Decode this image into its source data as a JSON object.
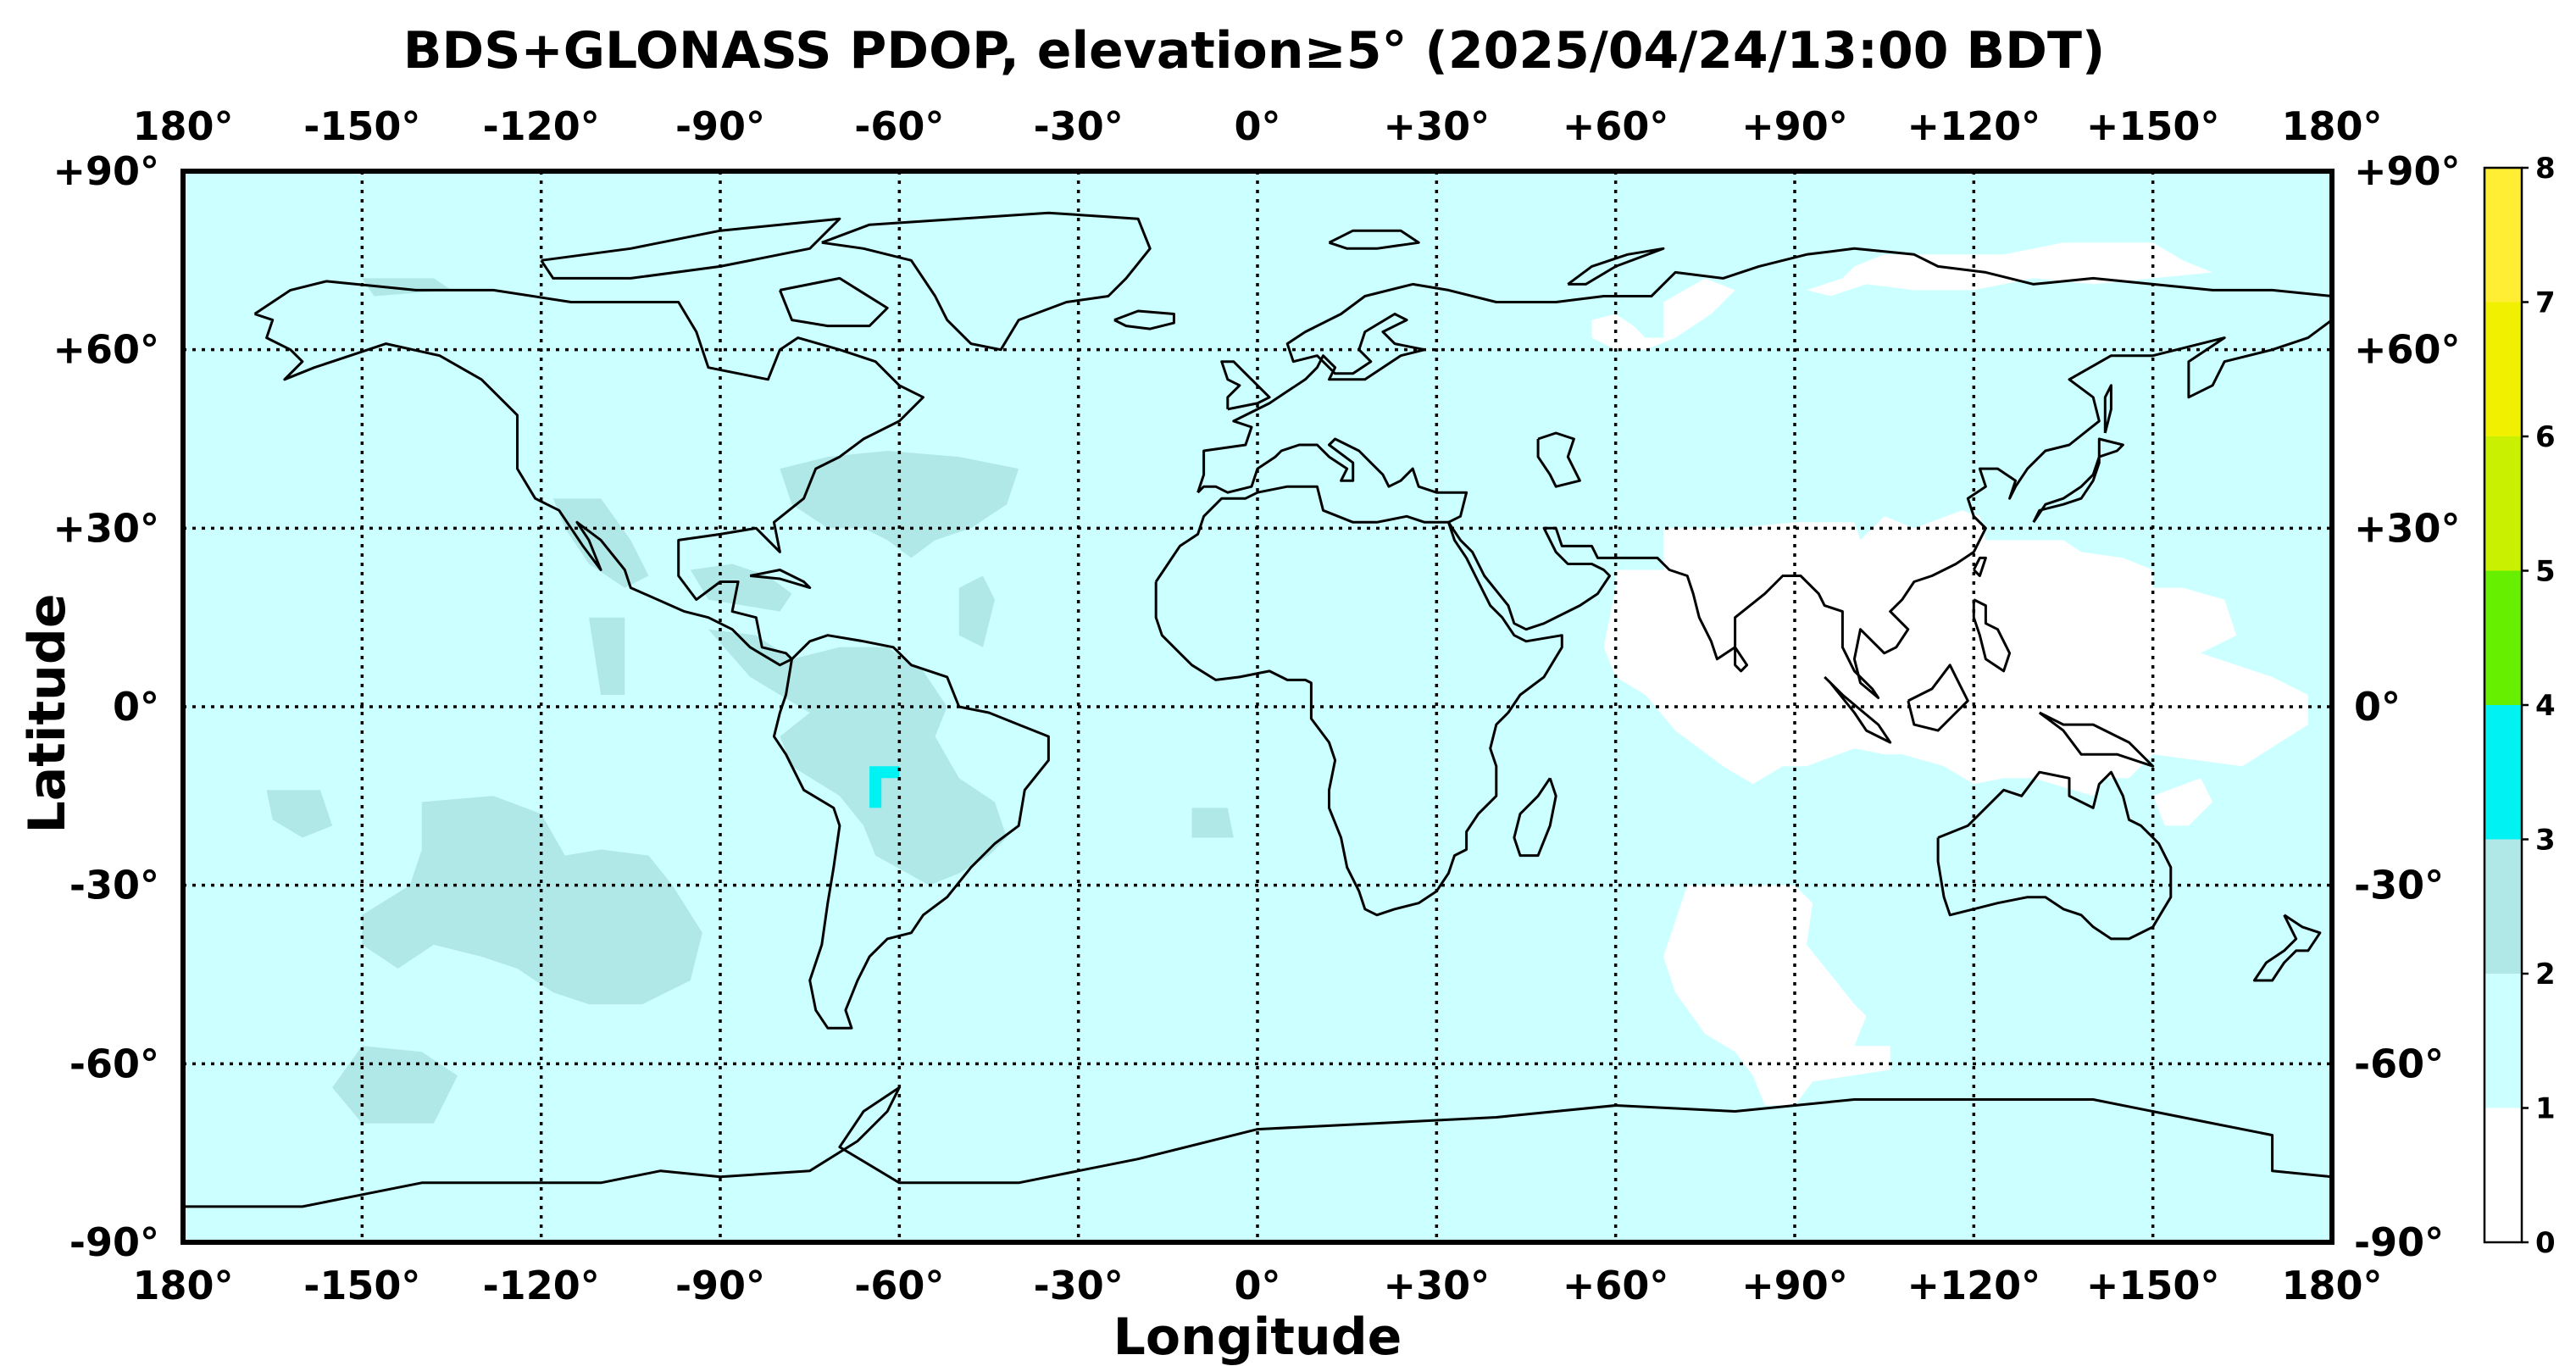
{
  "title": "BDS+GLONASS PDOP, elevation≥5° (2025/04/24/13:00 BDT)",
  "map": {
    "xlabel": "Longitude",
    "ylabel": "Latitude",
    "x_ticks": [
      {
        "value": -180,
        "label": "180°"
      },
      {
        "value": -150,
        "label": "-150°"
      },
      {
        "value": -120,
        "label": "-120°"
      },
      {
        "value": -90,
        "label": "-90°"
      },
      {
        "value": -60,
        "label": "-60°"
      },
      {
        "value": -30,
        "label": "-30°"
      },
      {
        "value": 0,
        "label": "0°"
      },
      {
        "value": 30,
        "label": "+30°"
      },
      {
        "value": 60,
        "label": "+60°"
      },
      {
        "value": 90,
        "label": "+90°"
      },
      {
        "value": 120,
        "label": "+120°"
      },
      {
        "value": 150,
        "label": "+150°"
      },
      {
        "value": 180,
        "label": "180°"
      }
    ],
    "y_ticks": [
      {
        "value": 90,
        "label": "+90°"
      },
      {
        "value": 60,
        "label": "+60°"
      },
      {
        "value": 30,
        "label": "+30°"
      },
      {
        "value": 0,
        "label": "0°"
      },
      {
        "value": -30,
        "label": "-30°"
      },
      {
        "value": -60,
        "label": "-60°"
      },
      {
        "value": -90,
        "label": "-90°"
      }
    ],
    "xlim": [
      -180,
      180
    ],
    "ylim": [
      -90,
      90
    ],
    "grid": true,
    "background_pdop_class": "1-2"
  },
  "colorbar": {
    "ticks": [
      "0",
      "1",
      "2",
      "3",
      "4",
      "5",
      "6",
      "7",
      "8"
    ],
    "bins": [
      {
        "range": [
          0,
          1
        ],
        "color": "#ffffff"
      },
      {
        "range": [
          1,
          2
        ],
        "color": "#ccffff"
      },
      {
        "range": [
          2,
          3
        ],
        "color": "#b0e8e8"
      },
      {
        "range": [
          3,
          4
        ],
        "color": "#00f2f2"
      },
      {
        "range": [
          4,
          5
        ],
        "color": "#66f000"
      },
      {
        "range": [
          5,
          6
        ],
        "color": "#c8f000"
      },
      {
        "range": [
          6,
          7
        ],
        "color": "#f0f000"
      },
      {
        "range": [
          7,
          8
        ],
        "color": "#ffee33"
      }
    ]
  },
  "chart_data": {
    "type": "heatmap",
    "title": "BDS+GLONASS PDOP, elevation≥5° (2025/04/24/13:00 BDT)",
    "xlabel": "Longitude",
    "ylabel": "Latitude",
    "xlim": [
      -180,
      180
    ],
    "ylim": [
      -90,
      90
    ],
    "colorbar_range": [
      0,
      8
    ],
    "background_value_range": [
      1,
      2
    ],
    "regions": [
      {
        "name": "east-asia-low-pdop",
        "pdop_range": [
          0,
          1
        ],
        "polygon": [
          [
            60,
            23
          ],
          [
            68,
            23
          ],
          [
            68,
            30
          ],
          [
            80,
            30
          ],
          [
            90,
            31
          ],
          [
            100,
            31
          ],
          [
            101,
            28
          ],
          [
            105,
            32
          ],
          [
            110,
            30
          ],
          [
            118,
            33
          ],
          [
            121,
            32
          ],
          [
            122,
            28
          ],
          [
            135,
            28
          ],
          [
            138,
            26
          ],
          [
            145,
            25
          ],
          [
            150,
            23
          ],
          [
            150,
            20
          ],
          [
            155,
            20
          ],
          [
            162,
            18
          ],
          [
            164,
            12
          ],
          [
            158,
            9
          ],
          [
            170,
            5
          ],
          [
            176,
            2
          ],
          [
            176,
            -3
          ],
          [
            165,
            -10
          ],
          [
            150,
            -8
          ],
          [
            146,
            -12
          ],
          [
            142,
            -12
          ],
          [
            140,
            -15
          ],
          [
            130,
            -12
          ],
          [
            125,
            -12
          ],
          [
            120,
            -13
          ],
          [
            115,
            -10
          ],
          [
            108,
            -8
          ],
          [
            105,
            -8
          ],
          [
            100,
            -7
          ],
          [
            92,
            -10
          ],
          [
            88,
            -10
          ],
          [
            83,
            -13
          ],
          [
            78,
            -10
          ],
          [
            70,
            -4
          ],
          [
            65,
            2
          ],
          [
            60,
            5
          ],
          [
            58,
            10
          ],
          [
            60,
            20
          ]
        ]
      },
      {
        "name": "siberia-low-pdop",
        "pdop_range": [
          0,
          1
        ],
        "polygon": [
          [
            92,
            70
          ],
          [
            98,
            72
          ],
          [
            100,
            74
          ],
          [
            105,
            76
          ],
          [
            125,
            76
          ],
          [
            135,
            78
          ],
          [
            150,
            78
          ],
          [
            155,
            75
          ],
          [
            160,
            73
          ],
          [
            140,
            71
          ],
          [
            130,
            72
          ],
          [
            120,
            70
          ],
          [
            110,
            70
          ],
          [
            102,
            71
          ],
          [
            96,
            69
          ]
        ]
      },
      {
        "name": "central-asia-low-pdop",
        "pdop_range": [
          0,
          1
        ],
        "polygon": [
          [
            56,
            65
          ],
          [
            60,
            66
          ],
          [
            63,
            64
          ],
          [
            65,
            62
          ],
          [
            68,
            62
          ],
          [
            68,
            68
          ],
          [
            75,
            72
          ],
          [
            80,
            70
          ],
          [
            76,
            66
          ],
          [
            70,
            62
          ],
          [
            65,
            60
          ],
          [
            60,
            60
          ],
          [
            56,
            62
          ]
        ]
      },
      {
        "name": "southern-ocean-low-pdop",
        "pdop_range": [
          0,
          1
        ],
        "polygon": [
          [
            72,
            -30
          ],
          [
            90,
            -30
          ],
          [
            93,
            -33
          ],
          [
            92,
            -40
          ],
          [
            96,
            -45
          ],
          [
            100,
            -50
          ],
          [
            102,
            -52
          ],
          [
            100,
            -57
          ],
          [
            106,
            -57
          ],
          [
            106,
            -61
          ],
          [
            93,
            -63
          ],
          [
            90,
            -67
          ],
          [
            85,
            -67
          ],
          [
            83,
            -62
          ],
          [
            80,
            -58
          ],
          [
            75,
            -55
          ],
          [
            70,
            -48
          ],
          [
            68,
            -42
          ],
          [
            70,
            -36
          ]
        ]
      },
      {
        "name": "australia-east-low-pdop",
        "pdop_range": [
          0,
          1
        ],
        "polygon": [
          [
            150,
            -15
          ],
          [
            158,
            -12
          ],
          [
            160,
            -16
          ],
          [
            156,
            -20
          ],
          [
            152,
            -20
          ]
        ]
      },
      {
        "name": "south-america-mid-pdop",
        "pdop_range": [
          2,
          3
        ],
        "polygon": [
          [
            -92,
            13
          ],
          [
            -85,
            5
          ],
          [
            -80,
            2
          ],
          [
            -75,
            -1
          ],
          [
            -80,
            -5
          ],
          [
            -78,
            -10
          ],
          [
            -70,
            -15
          ],
          [
            -66,
            -20
          ],
          [
            -64,
            -25
          ],
          [
            -55,
            -30
          ],
          [
            -50,
            -28
          ],
          [
            -45,
            -25
          ],
          [
            -42,
            -22
          ],
          [
            -44,
            -16
          ],
          [
            -50,
            -12
          ],
          [
            -54,
            -5
          ],
          [
            -52,
            0
          ],
          [
            -56,
            6
          ],
          [
            -62,
            10
          ],
          [
            -70,
            10
          ],
          [
            -78,
            8
          ],
          [
            -84,
            12
          ]
        ]
      },
      {
        "name": "us-east-mid-pdop",
        "pdop_range": [
          2,
          3
        ],
        "polygon": [
          [
            -80,
            40
          ],
          [
            -72,
            42
          ],
          [
            -62,
            43
          ],
          [
            -50,
            42
          ],
          [
            -40,
            40
          ],
          [
            -42,
            34
          ],
          [
            -48,
            30
          ],
          [
            -54,
            28
          ],
          [
            -58,
            25
          ],
          [
            -62,
            28
          ],
          [
            -66,
            30
          ],
          [
            -72,
            30
          ],
          [
            -78,
            34
          ]
        ]
      },
      {
        "name": "caribbean-mid-pdop",
        "pdop_range": [
          2,
          3
        ],
        "polygon": [
          [
            -95,
            23
          ],
          [
            -88,
            24
          ],
          [
            -82,
            22
          ],
          [
            -78,
            19
          ],
          [
            -80,
            16
          ],
          [
            -86,
            17
          ],
          [
            -92,
            18
          ]
        ]
      },
      {
        "name": "atlantic-mid-pdop",
        "pdop_range": [
          2,
          3
        ],
        "polygon": [
          [
            -50,
            20
          ],
          [
            -46,
            22
          ],
          [
            -44,
            18
          ],
          [
            -46,
            10
          ],
          [
            -50,
            12
          ]
        ]
      },
      {
        "name": "mexico-mid-pdop",
        "pdop_range": [
          2,
          3
        ],
        "polygon": [
          [
            -118,
            35
          ],
          [
            -110,
            35
          ],
          [
            -105,
            28
          ],
          [
            -102,
            22
          ],
          [
            -106,
            20
          ],
          [
            -112,
            24
          ],
          [
            -116,
            30
          ]
        ]
      },
      {
        "name": "pacific-east-mid-pdop",
        "pdop_range": [
          2,
          3
        ],
        "polygon": [
          [
            -112,
            15
          ],
          [
            -106,
            15
          ],
          [
            -106,
            2
          ],
          [
            -110,
            2
          ]
        ]
      },
      {
        "name": "south-pacific-mid-pdop",
        "pdop_range": [
          2,
          3
        ],
        "polygon": [
          [
            -140,
            -16
          ],
          [
            -128,
            -15
          ],
          [
            -120,
            -18
          ],
          [
            -116,
            -25
          ],
          [
            -110,
            -24
          ],
          [
            -102,
            -25
          ],
          [
            -98,
            -30
          ],
          [
            -93,
            -38
          ],
          [
            -95,
            -46
          ],
          [
            -103,
            -50
          ],
          [
            -112,
            -50
          ],
          [
            -118,
            -48
          ],
          [
            -124,
            -44
          ],
          [
            -130,
            -42
          ],
          [
            -138,
            -40
          ],
          [
            -144,
            -44
          ],
          [
            -150,
            -40
          ],
          [
            -150,
            -35
          ],
          [
            -142,
            -30
          ],
          [
            -140,
            -24
          ]
        ]
      },
      {
        "name": "south-pacific-west-mid-pdop",
        "pdop_range": [
          2,
          3
        ],
        "polygon": [
          [
            -166,
            -14
          ],
          [
            -157,
            -14
          ],
          [
            -155,
            -20
          ],
          [
            -160,
            -22
          ],
          [
            -165,
            -19
          ]
        ]
      },
      {
        "name": "southern-ocean-west-mid-pdop",
        "pdop_range": [
          2,
          3
        ],
        "polygon": [
          [
            -150,
            -57
          ],
          [
            -140,
            -58
          ],
          [
            -134,
            -62
          ],
          [
            -138,
            -70
          ],
          [
            -150,
            -70
          ],
          [
            -155,
            -64
          ]
        ]
      },
      {
        "name": "north-pacific-mid-pdop",
        "pdop_range": [
          2,
          3
        ],
        "polygon": [
          [
            -150,
            72
          ],
          [
            -138,
            72
          ],
          [
            -135,
            70
          ],
          [
            -148,
            69
          ]
        ]
      },
      {
        "name": "south-atlantic-mid-pdop",
        "pdop_range": [
          2,
          3
        ],
        "polygon": [
          [
            -11,
            -17
          ],
          [
            -5,
            -17
          ],
          [
            -4,
            -22
          ],
          [
            -11,
            -22
          ]
        ]
      },
      {
        "name": "amazon-high-pdop",
        "pdop_range": [
          3,
          4
        ],
        "polygon": [
          [
            -65,
            -10
          ],
          [
            -60,
            -10
          ],
          [
            -60,
            -12
          ],
          [
            -63,
            -12
          ],
          [
            -63,
            -17
          ],
          [
            -65,
            -17
          ]
        ]
      }
    ],
    "note_values": "PDOP value classes per region, background (ocean and land) in class 1-2"
  }
}
